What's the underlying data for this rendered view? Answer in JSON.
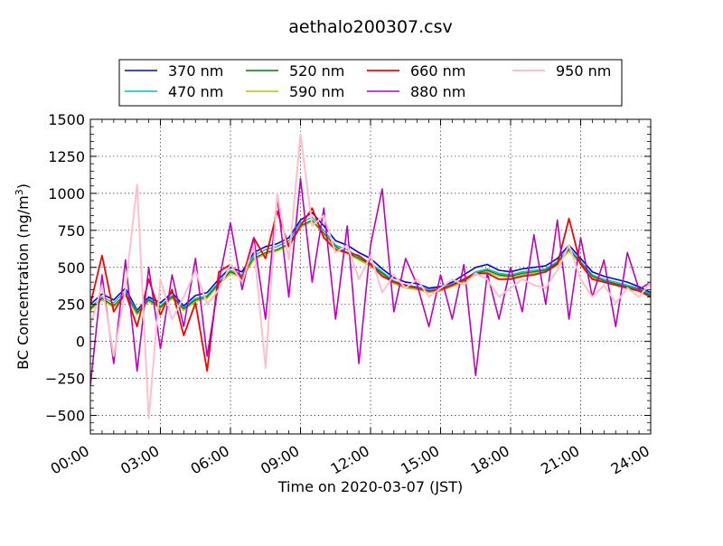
{
  "chart_data": {
    "type": "line",
    "title": "aethalo200307.csv",
    "xlabel": "Time on 2020-03-07 (JST)",
    "ylabel_main": "BC Concentration (ng/m",
    "ylabel_sup": "3",
    "ylabel_end": ")",
    "xlim": [
      0,
      24
    ],
    "ylim": [
      -625,
      1500
    ],
    "x_ticks": [
      {
        "value": 0,
        "label": "00:00"
      },
      {
        "value": 3,
        "label": "03:00"
      },
      {
        "value": 6,
        "label": "06:00"
      },
      {
        "value": 9,
        "label": "09:00"
      },
      {
        "value": 12,
        "label": "12:00"
      },
      {
        "value": 15,
        "label": "15:00"
      },
      {
        "value": 18,
        "label": "18:00"
      },
      {
        "value": 21,
        "label": "21:00"
      },
      {
        "value": 24,
        "label": "24:00"
      }
    ],
    "y_ticks": [
      {
        "value": 1500,
        "label": "1500"
      },
      {
        "value": 1250,
        "label": "1250"
      },
      {
        "value": 1000,
        "label": "1000"
      },
      {
        "value": 750,
        "label": "750"
      },
      {
        "value": 500,
        "label": "500"
      },
      {
        "value": 250,
        "label": "250"
      },
      {
        "value": 0,
        "label": "0"
      },
      {
        "value": -250,
        "label": "−250"
      },
      {
        "value": -500,
        "label": "−500"
      }
    ],
    "grid": true,
    "legend_position": "top-center",
    "series": [
      {
        "name": "370 nm",
        "color": "#0000ff",
        "width": 1.6,
        "x": [
          0,
          0.5,
          1,
          1.5,
          2,
          2.5,
          3,
          3.5,
          4,
          4.5,
          5,
          5.5,
          6,
          6.5,
          7,
          7.5,
          8,
          8.5,
          9,
          9.5,
          10,
          10.5,
          11,
          11.5,
          12,
          12.5,
          13,
          13.5,
          14,
          14.5,
          15,
          15.5,
          16,
          16.5,
          17,
          17.5,
          18,
          18.5,
          19,
          19.5,
          20,
          20.5,
          21,
          21.5,
          22,
          22.5,
          23,
          23.5,
          24
        ],
        "values": [
          250,
          320,
          280,
          360,
          210,
          300,
          260,
          330,
          240,
          310,
          330,
          420,
          500,
          470,
          600,
          640,
          660,
          700,
          820,
          870,
          780,
          680,
          650,
          600,
          560,
          490,
          430,
          400,
          390,
          360,
          370,
          400,
          450,
          500,
          520,
          480,
          470,
          490,
          500,
          510,
          560,
          650,
          560,
          470,
          440,
          420,
          400,
          370,
          330
        ]
      },
      {
        "name": "470 nm",
        "color": "#00bfbf",
        "width": 1.4,
        "x": [
          0,
          0.5,
          1,
          1.5,
          2,
          2.5,
          3,
          3.5,
          4,
          4.5,
          5,
          5.5,
          6,
          6.5,
          7,
          7.5,
          8,
          8.5,
          9,
          9.5,
          10,
          10.5,
          11,
          11.5,
          12,
          12.5,
          13,
          13.5,
          14,
          14.5,
          15,
          15.5,
          16,
          16.5,
          17,
          17.5,
          18,
          18.5,
          19,
          19.5,
          20,
          20.5,
          21,
          21.5,
          22,
          22.5,
          23,
          23.5,
          24
        ],
        "values": [
          230,
          300,
          260,
          340,
          200,
          290,
          240,
          310,
          230,
          290,
          310,
          400,
          480,
          450,
          580,
          620,
          640,
          680,
          800,
          840,
          750,
          650,
          620,
          570,
          530,
          470,
          410,
          380,
          370,
          350,
          360,
          390,
          420,
          470,
          490,
          460,
          450,
          470,
          480,
          490,
          540,
          630,
          540,
          450,
          420,
          400,
          380,
          360,
          320
        ]
      },
      {
        "name": "520 nm",
        "color": "#008000",
        "width": 1.4,
        "x": [
          0,
          0.5,
          1,
          1.5,
          2,
          2.5,
          3,
          3.5,
          4,
          4.5,
          5,
          5.5,
          6,
          6.5,
          7,
          7.5,
          8,
          8.5,
          9,
          9.5,
          10,
          10.5,
          11,
          11.5,
          12,
          12.5,
          13,
          13.5,
          14,
          14.5,
          15,
          15.5,
          16,
          16.5,
          17,
          17.5,
          18,
          18.5,
          19,
          19.5,
          20,
          20.5,
          21,
          21.5,
          22,
          22.5,
          23,
          23.5,
          24
        ],
        "values": [
          220,
          290,
          240,
          320,
          190,
          280,
          230,
          300,
          220,
          280,
          300,
          390,
          470,
          440,
          560,
          600,
          620,
          660,
          780,
          820,
          730,
          640,
          600,
          560,
          520,
          460,
          400,
          370,
          360,
          340,
          350,
          380,
          410,
          460,
          480,
          450,
          440,
          460,
          470,
          480,
          530,
          620,
          530,
          440,
          410,
          390,
          370,
          350,
          310
        ]
      },
      {
        "name": "590 nm",
        "color": "#bfbf00",
        "width": 1.4,
        "x": [
          0,
          0.5,
          1,
          1.5,
          2,
          2.5,
          3,
          3.5,
          4,
          4.5,
          5,
          5.5,
          6,
          6.5,
          7,
          7.5,
          8,
          8.5,
          9,
          9.5,
          10,
          10.5,
          11,
          11.5,
          12,
          12.5,
          13,
          13.5,
          14,
          14.5,
          15,
          15.5,
          16,
          16.5,
          17,
          17.5,
          18,
          18.5,
          19,
          19.5,
          20,
          20.5,
          21,
          21.5,
          22,
          22.5,
          23,
          23.5,
          24
        ],
        "values": [
          210,
          280,
          230,
          310,
          180,
          270,
          220,
          290,
          210,
          270,
          290,
          380,
          460,
          430,
          550,
          590,
          610,
          650,
          770,
          810,
          720,
          630,
          590,
          550,
          510,
          450,
          390,
          360,
          350,
          330,
          340,
          370,
          400,
          450,
          470,
          440,
          430,
          450,
          460,
          470,
          520,
          610,
          520,
          430,
          400,
          380,
          360,
          340,
          300
        ]
      },
      {
        "name": "660 nm",
        "color": "#ff0000",
        "width": 1.8,
        "x": [
          0,
          0.5,
          1,
          1.5,
          2,
          2.5,
          3,
          3.5,
          4,
          4.5,
          5,
          5.5,
          6,
          6.5,
          7,
          7.5,
          8,
          8.5,
          9,
          9.5,
          10,
          10.5,
          11,
          11.5,
          12,
          12.5,
          13,
          13.5,
          14,
          14.5,
          15,
          15.5,
          16,
          16.5,
          17,
          17.5,
          18,
          18.5,
          19,
          19.5,
          20,
          20.5,
          21,
          21.5,
          22,
          22.5,
          23,
          23.5,
          24
        ],
        "values": [
          250,
          580,
          200,
          330,
          100,
          420,
          180,
          350,
          40,
          260,
          -200,
          470,
          520,
          420,
          700,
          560,
          880,
          640,
          780,
          900,
          700,
          620,
          600,
          580,
          520,
          440,
          400,
          380,
          360,
          340,
          350,
          380,
          420,
          460,
          460,
          420,
          420,
          440,
          450,
          470,
          520,
          830,
          520,
          420,
          400,
          380,
          360,
          340,
          300
        ]
      },
      {
        "name": "880 nm",
        "color": "#bf00bf",
        "width": 1.6,
        "x": [
          0,
          0.5,
          1,
          1.5,
          2,
          2.5,
          3,
          3.5,
          4,
          4.5,
          5,
          5.5,
          6,
          6.5,
          7,
          7.5,
          8,
          8.5,
          9,
          9.5,
          10,
          10.5,
          11,
          11.5,
          12,
          12.5,
          13,
          13.5,
          14,
          14.5,
          15,
          15.5,
          16,
          16.5,
          17,
          17.5,
          18,
          18.5,
          19,
          19.5,
          20,
          20.5,
          21,
          21.5,
          22,
          22.5,
          23,
          23.5,
          24
        ],
        "values": [
          -300,
          450,
          -150,
          550,
          -200,
          500,
          -50,
          450,
          100,
          560,
          -100,
          400,
          800,
          350,
          700,
          150,
          980,
          300,
          1100,
          400,
          900,
          150,
          780,
          -150,
          650,
          1030,
          200,
          560,
          380,
          100,
          450,
          150,
          520,
          -230,
          460,
          150,
          500,
          200,
          720,
          250,
          820,
          150,
          700,
          300,
          550,
          100,
          600,
          350,
          400
        ]
      },
      {
        "name": "950 nm",
        "color": "#ffc0cb",
        "width": 2.0,
        "x": [
          0,
          0.5,
          1,
          1.5,
          2,
          2.5,
          3,
          3.5,
          4,
          4.5,
          5,
          5.5,
          6,
          6.5,
          7,
          7.5,
          8,
          8.5,
          9,
          9.5,
          10,
          10.5,
          11,
          11.5,
          12,
          12.5,
          13,
          13.5,
          14,
          14.5,
          15,
          15.5,
          16,
          16.5,
          17,
          17.5,
          18,
          18.5,
          19,
          19.5,
          20,
          20.5,
          21,
          21.5,
          22,
          22.5,
          23,
          23.5,
          24
        ],
        "values": [
          100,
          380,
          -100,
          350,
          1060,
          -520,
          420,
          150,
          300,
          480,
          250,
          350,
          520,
          400,
          650,
          -180,
          1000,
          550,
          1400,
          780,
          850,
          600,
          650,
          420,
          580,
          330,
          450,
          360,
          420,
          300,
          360,
          420,
          380,
          460,
          420,
          300,
          360,
          420,
          380,
          360,
          480,
          650,
          420,
          300,
          380,
          260,
          360,
          300,
          400
        ]
      }
    ]
  }
}
